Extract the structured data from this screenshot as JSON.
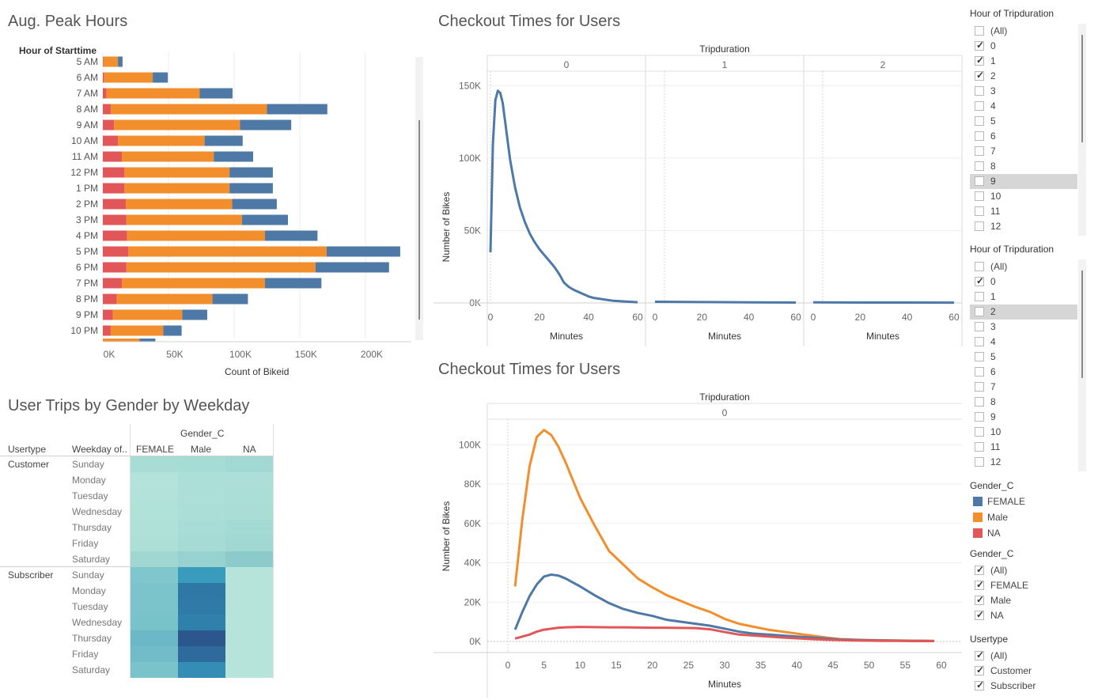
{
  "peak": {
    "title": "Aug. Peak Hours",
    "ylabel": "Hour of Starttime",
    "xlabel": "Count of Bikeid"
  },
  "checkout1": {
    "title": "Checkout Times for Users",
    "panel_header": "Tripduration",
    "ylabel": "Number of Bikes",
    "xlabel": "Minutes"
  },
  "gender_table": {
    "title": "User Trips by Gender by Weekday",
    "col_group": "Gender_C",
    "row_h1": "Usertype",
    "row_h2": "Weekday of..",
    "columns": [
      "FEMALE",
      "Male",
      "NA"
    ],
    "groups": [
      {
        "name": "Customer",
        "days": [
          "Sunday",
          "Monday",
          "Tuesday",
          "Wednesday",
          "Thursday",
          "Friday",
          "Saturday"
        ]
      },
      {
        "name": "Subscriber",
        "days": [
          "Sunday",
          "Monday",
          "Tuesday",
          "Wednesday",
          "Thursday",
          "Friday",
          "Saturday"
        ]
      }
    ],
    "colors": [
      [
        "#a8ddd6",
        "#a6dcd6",
        "#a2d9d4"
      ],
      [
        "#b3e3da",
        "#acdfd8",
        "#addfd8"
      ],
      [
        "#b2e2d9",
        "#acdfd8",
        "#aadfd7"
      ],
      [
        "#b1e2d9",
        "#abded7",
        "#aaddd6"
      ],
      [
        "#afe1d8",
        "#a8dcd6",
        "#a4dad4"
      ],
      [
        "#aedfd7",
        "#a6dbd5",
        "#a1d8d3"
      ],
      [
        "#a0d7d3",
        "#97d1d0",
        "#8dcacc"
      ],
      [
        "#7fc7cc",
        "#3a9cbd",
        "#b6e4da"
      ],
      [
        "#7cc4cb",
        "#2f78a6",
        "#b6e4da"
      ],
      [
        "#7cc4cb",
        "#2f7aa7",
        "#b6e4da"
      ],
      [
        "#78c2ca",
        "#2f80ab",
        "#b6e4da"
      ],
      [
        "#6cb8c8",
        "#2b578c",
        "#b6e4da"
      ],
      [
        "#72bcc9",
        "#2f6a9c",
        "#b6e4da"
      ],
      [
        "#7ac3cb",
        "#348db4",
        "#b6e4da"
      ]
    ]
  },
  "checkout2": {
    "title": "Checkout Times for Users",
    "panel_header": "Tripduration",
    "ylabel": "Number of Bikes",
    "xlabel": "Minutes"
  },
  "filter1": {
    "title": "Hour of Tripduration",
    "items": [
      {
        "label": "(All)",
        "checked": false
      },
      {
        "label": "0",
        "checked": true
      },
      {
        "label": "1",
        "checked": true
      },
      {
        "label": "2",
        "checked": true
      },
      {
        "label": "3",
        "checked": false
      },
      {
        "label": "4",
        "checked": false
      },
      {
        "label": "5",
        "checked": false
      },
      {
        "label": "6",
        "checked": false
      },
      {
        "label": "7",
        "checked": false
      },
      {
        "label": "8",
        "checked": false
      },
      {
        "label": "9",
        "checked": false,
        "highlight": true
      },
      {
        "label": "10",
        "checked": false
      },
      {
        "label": "11",
        "checked": false
      },
      {
        "label": "12",
        "checked": false
      }
    ]
  },
  "filter2": {
    "title": "Hour of Tripduration",
    "items": [
      {
        "label": "(All)",
        "checked": false
      },
      {
        "label": "0",
        "checked": true
      },
      {
        "label": "1",
        "checked": false
      },
      {
        "label": "2",
        "checked": false,
        "highlight": true
      },
      {
        "label": "3",
        "checked": false
      },
      {
        "label": "4",
        "checked": false
      },
      {
        "label": "5",
        "checked": false
      },
      {
        "label": "6",
        "checked": false
      },
      {
        "label": "7",
        "checked": false
      },
      {
        "label": "8",
        "checked": false
      },
      {
        "label": "9",
        "checked": false
      },
      {
        "label": "10",
        "checked": false
      },
      {
        "label": "11",
        "checked": false
      },
      {
        "label": "12",
        "checked": false
      }
    ]
  },
  "legend": {
    "title": "Gender_C",
    "items": [
      {
        "label": "FEMALE",
        "color": "#4e79a7"
      },
      {
        "label": "Male",
        "color": "#f28e2b"
      },
      {
        "label": "NA",
        "color": "#e15759"
      }
    ]
  },
  "filter_gender": {
    "title": "Gender_C",
    "items": [
      {
        "label": "(All)",
        "checked": true
      },
      {
        "label": "FEMALE",
        "checked": true
      },
      {
        "label": "Male",
        "checked": true
      },
      {
        "label": "NA",
        "checked": true
      }
    ]
  },
  "filter_usertype": {
    "title": "Usertype",
    "items": [
      {
        "label": "(All)",
        "checked": true
      },
      {
        "label": "Customer",
        "checked": true
      },
      {
        "label": "Subscriber",
        "checked": true
      }
    ]
  },
  "chart_data": [
    {
      "type": "bar",
      "title": "Aug. Peak Hours",
      "stacked": true,
      "orientation": "horizontal",
      "ylabel": "Hour of Starttime",
      "xlabel": "Count of Bikeid",
      "categories": [
        "5 AM",
        "6 AM",
        "7 AM",
        "8 AM",
        "9 AM",
        "10 AM",
        "11 AM",
        "12 PM",
        "1 PM",
        "2 PM",
        "3 PM",
        "4 PM",
        "5 PM",
        "6 PM",
        "7 PM",
        "8 PM",
        "9 PM",
        "10 PM"
      ],
      "series": [
        {
          "name": "NA",
          "color": "#e15759",
          "values": [
            500,
            1000,
            2800,
            6000,
            8500,
            11500,
            14500,
            16500,
            16500,
            17500,
            18000,
            18500,
            19500,
            18000,
            14500,
            10500,
            7500,
            6000
          ]
        },
        {
          "name": "Male",
          "color": "#f28e2b",
          "values": [
            11000,
            37000,
            71000,
            119000,
            96000,
            66000,
            70000,
            80000,
            80000,
            81000,
            88000,
            105000,
            151000,
            144000,
            109000,
            73000,
            53000,
            40000
          ]
        },
        {
          "name": "FEMALE",
          "color": "#4e79a7",
          "values": [
            3500,
            11500,
            25000,
            46000,
            39000,
            29000,
            30000,
            33000,
            33000,
            34000,
            35000,
            40000,
            56000,
            56000,
            43000,
            27000,
            19000,
            14000
          ]
        }
      ],
      "xticks": [
        "0K",
        "50K",
        "100K",
        "150K",
        "200K"
      ],
      "xlim": [
        0,
        235000
      ]
    },
    {
      "type": "line",
      "title": "Checkout Times for Users",
      "facet_header": "Tripduration",
      "facets": [
        "0",
        "1",
        "2"
      ],
      "xlabel": "Minutes",
      "ylabel": "Number of Bikes",
      "xticks": [
        "0",
        "20",
        "40",
        "60"
      ],
      "yticks": [
        "0K",
        "50K",
        "100K",
        "150K"
      ],
      "ylim": [
        0,
        150000
      ],
      "series": [
        {
          "facet": "0",
          "color": "#4e79a7",
          "x": [
            0,
            1,
            2,
            3,
            4,
            5,
            6,
            8,
            10,
            12,
            14,
            16,
            18,
            20,
            22,
            24,
            26,
            28,
            30,
            32,
            34,
            36,
            38,
            40,
            42,
            44,
            46,
            48,
            50,
            52,
            54,
            56,
            58,
            60
          ],
          "y": [
            35000,
            110000,
            140000,
            146500,
            145000,
            138000,
            125000,
            99000,
            80000,
            66000,
            56000,
            48000,
            42000,
            37000,
            33000,
            29000,
            25000,
            20000,
            14000,
            11000,
            9000,
            7500,
            6000,
            4500,
            3500,
            3000,
            2500,
            2000,
            1500,
            1300,
            1100,
            900,
            700,
            500
          ]
        },
        {
          "facet": "1",
          "color": "#4e79a7",
          "x": [
            0,
            20,
            40,
            60
          ],
          "y": [
            800,
            600,
            400,
            300
          ]
        },
        {
          "facet": "2",
          "color": "#4e79a7",
          "x": [
            0,
            20,
            40,
            60
          ],
          "y": [
            400,
            300,
            300,
            200
          ]
        }
      ]
    },
    {
      "type": "line",
      "title": "Checkout Times for Users",
      "facet_header": "Tripduration",
      "facets": [
        "0"
      ],
      "xlabel": "Minutes",
      "ylabel": "Number of Bikes",
      "xticks": [
        "0",
        "5",
        "10",
        "15",
        "20",
        "25",
        "30",
        "35",
        "40",
        "45",
        "50",
        "55",
        "60"
      ],
      "yticks": [
        "0K",
        "20K",
        "40K",
        "60K",
        "80K",
        "100K"
      ],
      "ylim": [
        0,
        110000
      ],
      "series": [
        {
          "name": "Male",
          "color": "#f28e2b",
          "x": [
            1,
            2,
            3,
            4,
            5,
            6,
            7,
            8,
            9,
            10,
            12,
            14,
            16,
            18,
            20,
            22,
            24,
            26,
            28,
            30,
            32,
            34,
            36,
            38,
            40,
            42,
            44,
            46,
            48,
            50,
            52,
            54,
            56,
            58,
            59
          ],
          "y": [
            28000,
            62000,
            89000,
            104000,
            107500,
            105000,
            99000,
            91000,
            82000,
            73000,
            59000,
            46000,
            39000,
            32000,
            27500,
            23500,
            20500,
            17500,
            15000,
            11500,
            9000,
            7500,
            6000,
            5000,
            4000,
            3000,
            2000,
            1200,
            900,
            700,
            600,
            500,
            400,
            300,
            300
          ]
        },
        {
          "name": "FEMALE",
          "color": "#4e79a7",
          "x": [
            1,
            2,
            3,
            4,
            5,
            6,
            7,
            8,
            9,
            10,
            12,
            14,
            16,
            18,
            20,
            22,
            24,
            26,
            28,
            30,
            32,
            34,
            36,
            38,
            40,
            42,
            44,
            46,
            48,
            50,
            52,
            54,
            56,
            58,
            59
          ],
          "y": [
            6000,
            15000,
            23000,
            29000,
            33000,
            34000,
            33500,
            32000,
            30000,
            28000,
            23500,
            19500,
            16500,
            14500,
            13000,
            11000,
            10000,
            9000,
            8000,
            6500,
            5000,
            4000,
            3500,
            3000,
            2500,
            2000,
            1500,
            1000,
            800,
            600,
            500,
            400,
            300,
            300,
            200
          ]
        },
        {
          "name": "NA",
          "color": "#e15759",
          "x": [
            1,
            2,
            3,
            4,
            5,
            6,
            7,
            8,
            9,
            10,
            12,
            14,
            16,
            18,
            20,
            22,
            24,
            26,
            28,
            30,
            32,
            34,
            36,
            38,
            40,
            42,
            44,
            46,
            48,
            50,
            52,
            54,
            56,
            58,
            59
          ],
          "y": [
            1500,
            2500,
            3500,
            5000,
            6000,
            6500,
            7000,
            7200,
            7300,
            7400,
            7300,
            7200,
            7200,
            7100,
            7000,
            7000,
            6900,
            6800,
            6200,
            4800,
            3500,
            3000,
            2500,
            2000,
            1600,
            1200,
            900,
            700,
            500,
            400,
            300,
            300,
            200,
            200,
            200
          ]
        }
      ]
    }
  ]
}
